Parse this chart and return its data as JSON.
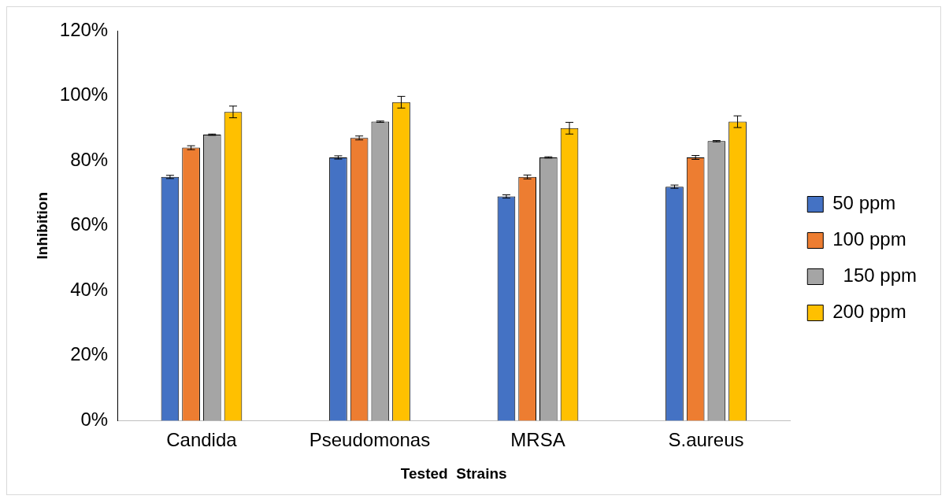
{
  "chart_data": {
    "type": "bar",
    "xlabel": "Tested  Strains",
    "ylabel": "Inhibition",
    "categories": [
      "Candida",
      "Pseudomonas",
      "MRSA",
      "S.aureus"
    ],
    "series": [
      {
        "name": "50 ppm",
        "color": "#4472c4",
        "values": [
          75,
          81,
          69,
          72
        ],
        "errors": [
          0.5,
          0.5,
          0.5,
          0.5
        ]
      },
      {
        "name": "100 ppm",
        "color": "#ed7d31",
        "values": [
          84,
          87,
          75,
          81
        ],
        "errors": [
          0.6,
          0.6,
          0.6,
          0.6
        ]
      },
      {
        "name": "  150 ppm",
        "color": "#a5a5a5",
        "values": [
          88,
          92,
          81,
          86
        ],
        "errors": [
          0.2,
          0.2,
          0.2,
          0.2
        ]
      },
      {
        "name": "200 ppm",
        "color": "#ffc000",
        "values": [
          95,
          98,
          90,
          92
        ],
        "errors": [
          1.8,
          1.8,
          1.8,
          1.8
        ]
      }
    ],
    "ylim": [
      0,
      120
    ],
    "yticks": [
      {
        "value": 0,
        "label": "0%"
      },
      {
        "value": 20,
        "label": "20%"
      },
      {
        "value": 40,
        "label": "40%"
      },
      {
        "value": 60,
        "label": "60%"
      },
      {
        "value": 80,
        "label": "80%"
      },
      {
        "value": 100,
        "label": "100%"
      },
      {
        "value": 120,
        "label": "120%"
      }
    ],
    "grid": false,
    "legend": "right"
  }
}
